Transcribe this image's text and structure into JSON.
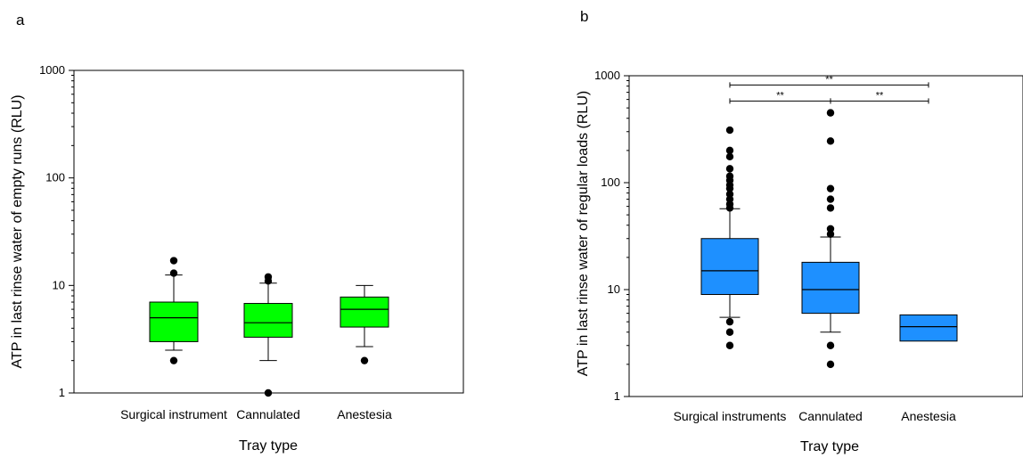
{
  "colors": {
    "panel_a_box": "#00ff00",
    "panel_b_box": "#1e90ff",
    "outlier": "#000000"
  },
  "chart_data": [
    {
      "panel": "a",
      "type": "box",
      "xlabel": "Tray type",
      "ylabel": "ATP in last rinse water of empty runs (RLU)",
      "yscale": "log",
      "ylim": [
        1,
        1000
      ],
      "yticks": [
        "1",
        "10",
        "100",
        "1000"
      ],
      "categories": [
        "Surgical instrument",
        "Cannulated",
        "Anestesia"
      ],
      "boxes": [
        {
          "q1": 3,
          "median": 5,
          "q3": 7,
          "whisker_low": 2.5,
          "whisker_high": 12.5,
          "outliers": [
            2,
            13,
            17
          ]
        },
        {
          "q1": 3.3,
          "median": 4.5,
          "q3": 6.8,
          "whisker_low": 2,
          "whisker_high": 10.5,
          "outliers": [
            1,
            11,
            12
          ]
        },
        {
          "q1": 4.1,
          "median": 6,
          "q3": 7.8,
          "whisker_low": 2.7,
          "whisker_high": 10,
          "outliers": [
            2
          ]
        }
      ]
    },
    {
      "panel": "b",
      "type": "box",
      "xlabel": "Tray type",
      "ylabel": "ATP in last rinse water of regular loads (RLU)",
      "yscale": "log",
      "ylim": [
        1,
        1000
      ],
      "yticks": [
        "1",
        "10",
        "100",
        "1000"
      ],
      "categories": [
        "Surgical instruments",
        "Cannulated",
        "Anestesia"
      ],
      "boxes": [
        {
          "q1": 9,
          "median": 15,
          "q3": 30,
          "whisker_low": 5.5,
          "whisker_high": 57,
          "outliers": [
            3,
            4,
            5,
            58,
            63,
            70,
            78,
            88,
            95,
            105,
            115,
            135,
            175,
            200,
            310
          ]
        },
        {
          "q1": 6,
          "median": 10,
          "q3": 18,
          "whisker_low": 4,
          "whisker_high": 31,
          "outliers": [
            2,
            3,
            33,
            37,
            58,
            70,
            88,
            245,
            450
          ]
        },
        {
          "q1": 3.3,
          "median": 4.5,
          "q3": 5.8,
          "whisker_low": 3.3,
          "whisker_high": 5.8,
          "outliers": []
        }
      ],
      "significance": [
        {
          "from": 0,
          "to": 2,
          "label": "**",
          "y": 820
        },
        {
          "from": 0,
          "to": 1,
          "label": "**",
          "y": 580
        },
        {
          "from": 1,
          "to": 2,
          "label": "**",
          "y": 580
        }
      ]
    }
  ]
}
